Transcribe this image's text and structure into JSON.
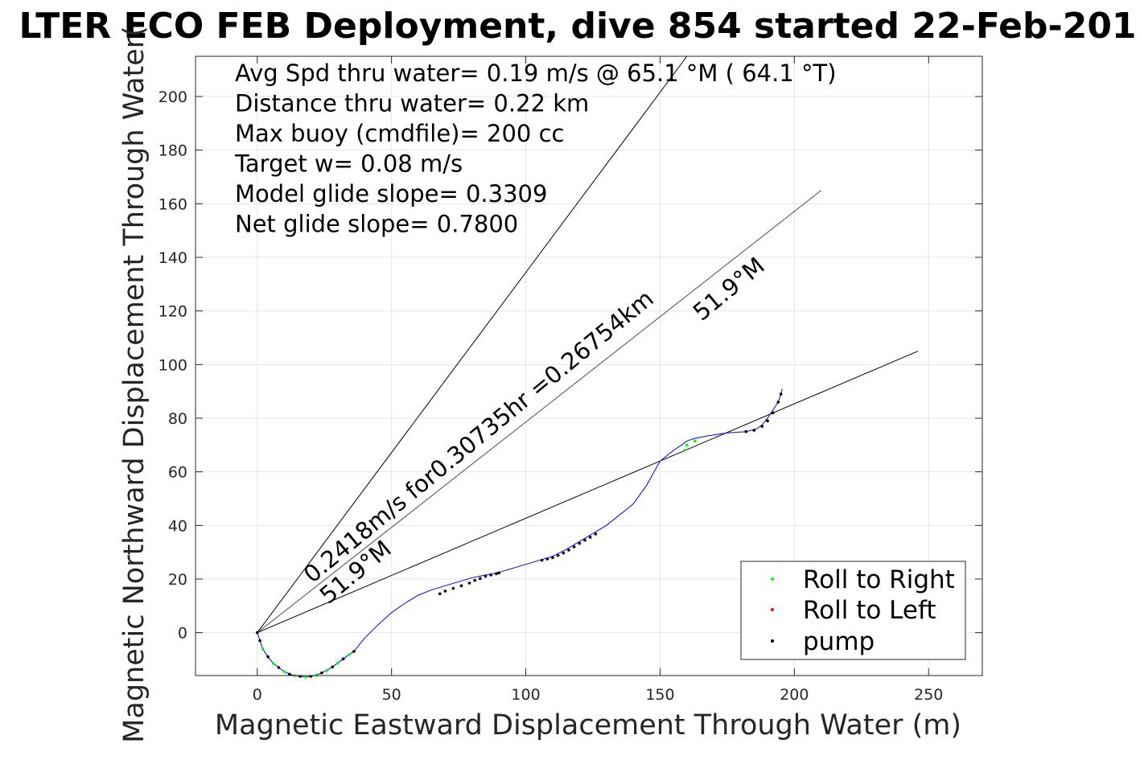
{
  "chart_data": {
    "type": "line",
    "title": "LTER ECO FEB Deployment, dive 854 started 22-Feb-201",
    "xlabel": "Magnetic Eastward Displacement Through Water (m)",
    "ylabel": "Magnetic Northward Displacement Through Water(",
    "xlim": [
      -23,
      270
    ],
    "ylim": [
      -16,
      215
    ],
    "xticks": [
      0,
      50,
      100,
      150,
      200,
      250
    ],
    "yticks": [
      0,
      20,
      40,
      60,
      80,
      100,
      120,
      140,
      160,
      180,
      200
    ],
    "grid": true,
    "legend_position": "bottom-right",
    "info_lines": [
      "Avg Spd thru water=  0.19 m/s @  65.1 °M ( 64.1 °T)",
      "Distance thru water=  0.22 km",
      "Max buoy (cmdfile)= 200 cc",
      "Target w= 0.08 m/s",
      "Model glide slope= 0.3309",
      "Net glide slope= 0.7800"
    ],
    "annotations": [
      "0.2418m/s for0.30735hr =0.26754km",
      "51.9°M",
      "51.9°M"
    ],
    "reference_lines": [
      {
        "x": [
          0,
          160
        ],
        "y": [
          0,
          215
        ],
        "color": "#000000"
      },
      {
        "x": [
          0,
          210
        ],
        "y": [
          0,
          165
        ],
        "color": "#c000c0"
      },
      {
        "x": [
          0,
          210
        ],
        "y": [
          0,
          165
        ],
        "color": "#666666"
      },
      {
        "x": [
          0,
          246
        ],
        "y": [
          0,
          105
        ],
        "color": "#000000"
      }
    ],
    "track": {
      "color": "#0000ff",
      "x": [
        0,
        1,
        2,
        4,
        6,
        8,
        10,
        12,
        14,
        16,
        18,
        20,
        22,
        24,
        26,
        28,
        30,
        32,
        34,
        36,
        40,
        45,
        50,
        55,
        60,
        65,
        70,
        75,
        80,
        85,
        90,
        95,
        100,
        105,
        110,
        115,
        120,
        125,
        130,
        135,
        140,
        145,
        150,
        155,
        158,
        160,
        163,
        168,
        175,
        182,
        186,
        188,
        190,
        192,
        194,
        195,
        195.5
      ],
      "y": [
        0,
        -3,
        -6,
        -9,
        -11.5,
        -13,
        -14.5,
        -15.5,
        -16,
        -16.3,
        -16.5,
        -16.3,
        -15.8,
        -15,
        -14,
        -12.8,
        -11.3,
        -9.8,
        -8.3,
        -7,
        -2,
        3,
        7.5,
        11,
        14,
        16,
        17.5,
        19,
        20.5,
        21.5,
        22.5,
        24,
        25.5,
        27,
        28.5,
        31,
        34,
        37,
        40,
        44,
        48,
        55,
        64,
        68,
        70,
        71.5,
        72.5,
        73.5,
        74.5,
        75,
        76,
        77.5,
        80,
        83,
        86,
        89,
        91
      ]
    },
    "series": [
      {
        "name": "Roll to Right",
        "color": "#00ff00",
        "x": [
          0,
          2,
          4,
          6,
          8,
          10,
          14,
          18,
          22,
          26,
          30,
          32,
          34,
          36,
          159,
          160,
          163
        ],
        "y": [
          0,
          -6,
          -9,
          -11.5,
          -13,
          -14.5,
          -16,
          -16.5,
          -15.8,
          -14,
          -11.3,
          -9.8,
          -8.3,
          -7,
          68,
          70,
          71.5
        ]
      },
      {
        "name": "Roll to Left",
        "color": "#ff0000",
        "x": [
          182,
          185,
          188,
          190,
          192,
          194,
          195
        ],
        "y": [
          75,
          75.5,
          77,
          79,
          82,
          86,
          89
        ]
      },
      {
        "name": "pump",
        "color": "#000000",
        "x": [
          0,
          1,
          4,
          8,
          12,
          16,
          20,
          24,
          28,
          32,
          36,
          68,
          70,
          73,
          76,
          79,
          81,
          83,
          85,
          87,
          89,
          90,
          106,
          108,
          110,
          112,
          114,
          116,
          118,
          120,
          122,
          124,
          126,
          182,
          185,
          188,
          190,
          192,
          194,
          195
        ],
        "y": [
          0,
          -3,
          -9,
          -13,
          -15.5,
          -16.3,
          -16.3,
          -15,
          -12.8,
          -9.8,
          -7,
          14.5,
          15.5,
          16.5,
          17.5,
          18.5,
          19.5,
          20.2,
          21,
          21.5,
          22,
          22.3,
          27,
          27.5,
          28,
          28.8,
          29.7,
          30.8,
          32,
          33.3,
          34.5,
          35.6,
          36.8,
          75,
          75.5,
          77,
          79,
          82,
          86,
          89
        ]
      }
    ]
  }
}
